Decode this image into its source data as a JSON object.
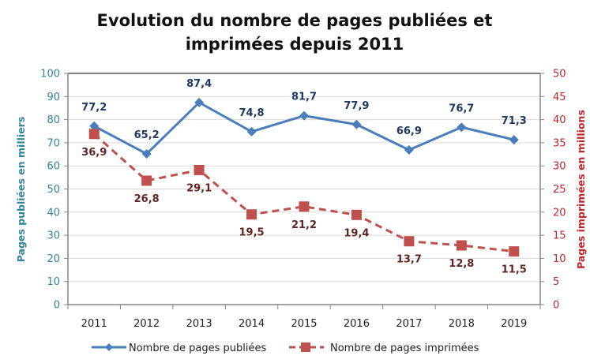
{
  "chart_data": {
    "type": "line",
    "title_lines": [
      "Evolution du nombre de pages publiées et",
      "imprimées depuis 2011"
    ],
    "categories": [
      "2011",
      "2012",
      "2013",
      "2014",
      "2015",
      "2016",
      "2017",
      "2018",
      "2019"
    ],
    "series": [
      {
        "name": "Nombre de pages publiées",
        "axis": "left",
        "color": "#4a7ebb",
        "label_color": "#1f3864",
        "marker": "diamond",
        "line_style": "solid",
        "values": [
          77.2,
          65.2,
          87.4,
          74.8,
          81.7,
          77.9,
          66.9,
          76.7,
          71.3
        ],
        "labels": [
          "77,2",
          "65,2",
          "87,4",
          "74,8",
          "81,7",
          "77,9",
          "66,9",
          "76,7",
          "71,3"
        ]
      },
      {
        "name": "Nombre de pages imprimées",
        "axis": "right",
        "color": "#c0504d",
        "label_color": "#632523",
        "marker": "square",
        "line_style": "dashed",
        "values": [
          36.9,
          26.8,
          29.1,
          19.5,
          21.2,
          19.4,
          13.7,
          12.8,
          11.5
        ],
        "labels": [
          "36,9",
          "26,8",
          "29,1",
          "19,5",
          "21,2",
          "19,4",
          "13,7",
          "12,8",
          "11,5"
        ]
      }
    ],
    "y_left": {
      "label": "Pages publiées en milliers",
      "ylim": [
        0,
        100
      ],
      "ticks": [
        "0",
        "10",
        "20",
        "30",
        "40",
        "50",
        "60",
        "70",
        "80",
        "90",
        "100"
      ],
      "color": "#31849b"
    },
    "y_right": {
      "label": "Pages imprimées en millions",
      "ylim": [
        0,
        50
      ],
      "ticks": [
        "0",
        "5",
        "10",
        "15",
        "20",
        "25",
        "30",
        "35",
        "40",
        "45",
        "50"
      ],
      "color": "#c0262c"
    },
    "xlabel": "",
    "grid": true,
    "legend": "bottom"
  }
}
